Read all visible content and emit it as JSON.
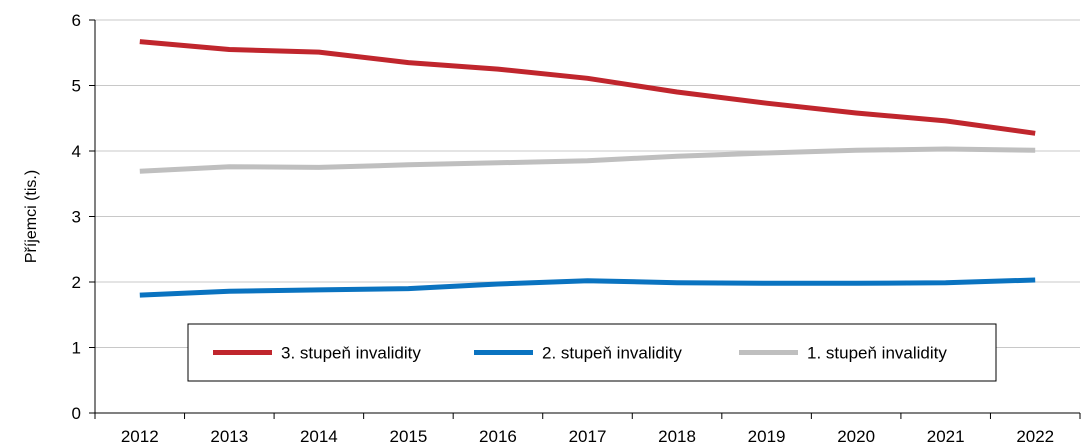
{
  "chart_data": {
    "type": "line",
    "title": "",
    "xlabel": "",
    "ylabel": "Příjemci (tis.)",
    "x": [
      2012,
      2013,
      2014,
      2015,
      2016,
      2017,
      2018,
      2019,
      2020,
      2021,
      2022
    ],
    "ylim": [
      0,
      6
    ],
    "yticks": [
      0,
      1,
      2,
      3,
      4,
      5,
      6
    ],
    "grid": true,
    "legend_position": "bottom-center",
    "series": [
      {
        "name": "3. stupeň invalidity",
        "color": "#c0262d",
        "values": [
          5.67,
          5.55,
          5.51,
          5.35,
          5.25,
          5.11,
          4.9,
          4.73,
          4.58,
          4.46,
          4.27
        ]
      },
      {
        "name": "2. stupeň invalidity",
        "color": "#0a73c0",
        "values": [
          1.8,
          1.86,
          1.88,
          1.9,
          1.97,
          2.02,
          1.99,
          1.98,
          1.98,
          1.99,
          2.03
        ]
      },
      {
        "name": "1. stupeň invalidity",
        "color": "#bfbfbf",
        "values": [
          3.69,
          3.76,
          3.75,
          3.79,
          3.82,
          3.85,
          3.92,
          3.97,
          4.01,
          4.03,
          4.01
        ]
      }
    ]
  }
}
